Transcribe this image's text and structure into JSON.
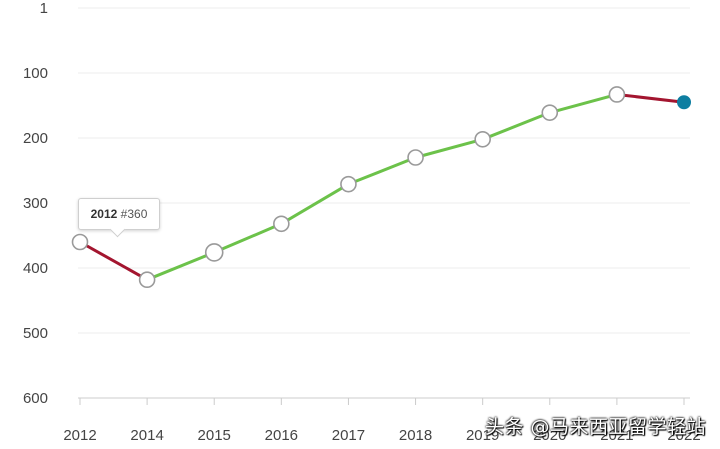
{
  "chart_data": {
    "type": "line",
    "title": "",
    "xlabel": "",
    "ylabel": "",
    "y_inverted": true,
    "ylim": [
      1,
      600
    ],
    "y_ticks": [
      1,
      100,
      200,
      300,
      400,
      500,
      600
    ],
    "y_tick_labels": [
      "1",
      "100",
      "200",
      "300",
      "400",
      "500",
      "600"
    ],
    "x_ticks": [
      2012,
      2014,
      2015,
      2016,
      2017,
      2018,
      2019,
      2020,
      2021,
      2022
    ],
    "x_tick_labels": [
      "2012",
      "2014",
      "2015",
      "2016",
      "2017",
      "2018",
      "2019",
      "2020",
      "2021",
      "2022"
    ],
    "points": [
      {
        "year": "2012",
        "rank": 360
      },
      {
        "year": "2014",
        "rank": 418
      },
      {
        "year": "2015",
        "rank": 376
      },
      {
        "year": "2016",
        "rank": 332
      },
      {
        "year": "2017",
        "rank": 271
      },
      {
        "year": "2018",
        "rank": 230
      },
      {
        "year": "2019",
        "rank": 202
      },
      {
        "year": "2020",
        "rank": 161
      },
      {
        "year": "2021",
        "rank": 133
      },
      {
        "year": "2022",
        "rank": 145
      }
    ],
    "grid": true,
    "colors": {
      "improve": "#6cc24a",
      "decline": "#a3152f",
      "latest_point": "#0e7ea1",
      "marker_stroke": "#9a9a9a"
    }
  },
  "tooltip": {
    "year": "2012",
    "rank": "#360"
  },
  "watermark": "头条 @马来西亚留学轻站"
}
